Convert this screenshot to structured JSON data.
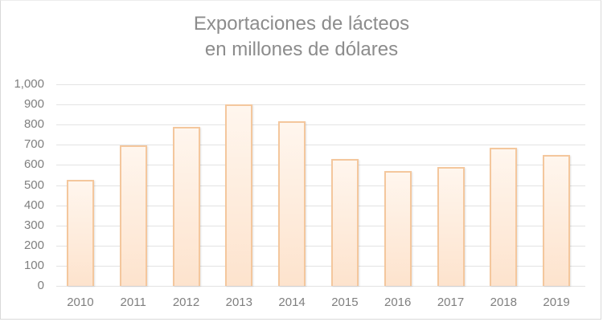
{
  "chart_data": {
    "type": "bar",
    "title": "Exportaciones de lácteos en millones de dólares",
    "title_lines": [
      "Exportaciones de lácteos",
      "en millones de dólares"
    ],
    "xlabel": "",
    "ylabel": "",
    "categories": [
      "2010",
      "2011",
      "2012",
      "2013",
      "2014",
      "2015",
      "2016",
      "2017",
      "2018",
      "2019"
    ],
    "values": [
      525,
      698,
      790,
      900,
      815,
      630,
      570,
      590,
      685,
      650
    ],
    "ylim": [
      0,
      1000
    ],
    "yticks": [
      "0",
      "100",
      "200",
      "300",
      "400",
      "500",
      "600",
      "700",
      "800",
      "900",
      "1,000"
    ],
    "grid": true,
    "legend": null,
    "colors": {
      "bar_fill_top": "#fff6ee",
      "bar_fill_bottom": "#fde3cd",
      "bar_border": "#f4c79d",
      "gridline": "#e3e3e3",
      "text": "#7f7f7f",
      "title": "#8c8c8c"
    }
  }
}
